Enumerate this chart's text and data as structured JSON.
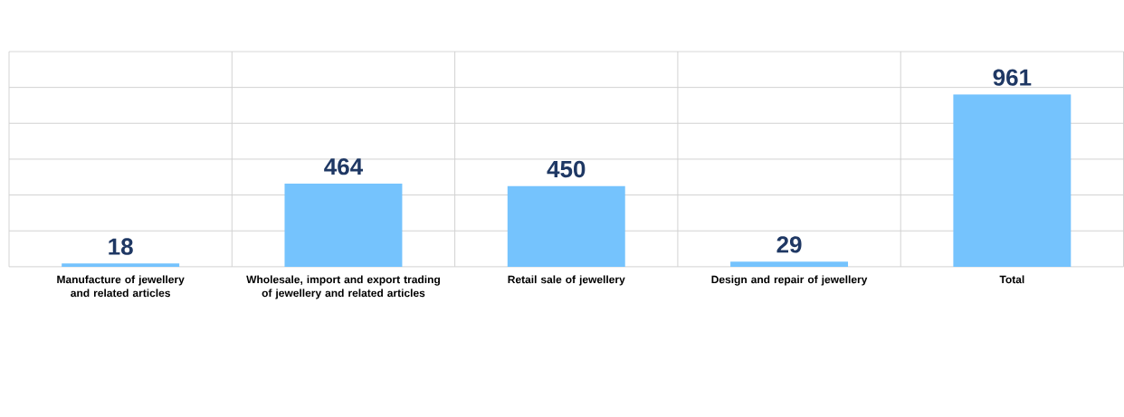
{
  "chart_data": {
    "type": "bar",
    "categories": [
      "Manufacture of jewellery and related articles",
      "Wholesale, import and export trading of jewellery and related articles",
      "Retail sale of jewellery",
      "Design and repair of jewellery",
      "Total"
    ],
    "values": [
      18,
      464,
      450,
      29,
      961
    ],
    "color": "#75c3fd",
    "data_labels": true,
    "ylim": [
      0,
      1200
    ],
    "yticks": [
      {
        "value": 0,
        "label": null
      },
      {
        "value": 200,
        "label": null
      },
      {
        "value": 400,
        "label": null
      },
      {
        "value": 600,
        "label": null
      },
      {
        "value": 800,
        "label": null
      },
      {
        "value": 1000,
        "label": null
      },
      {
        "value": 1200,
        "label": null
      }
    ],
    "grid": true,
    "tick_labels": "x"
  }
}
